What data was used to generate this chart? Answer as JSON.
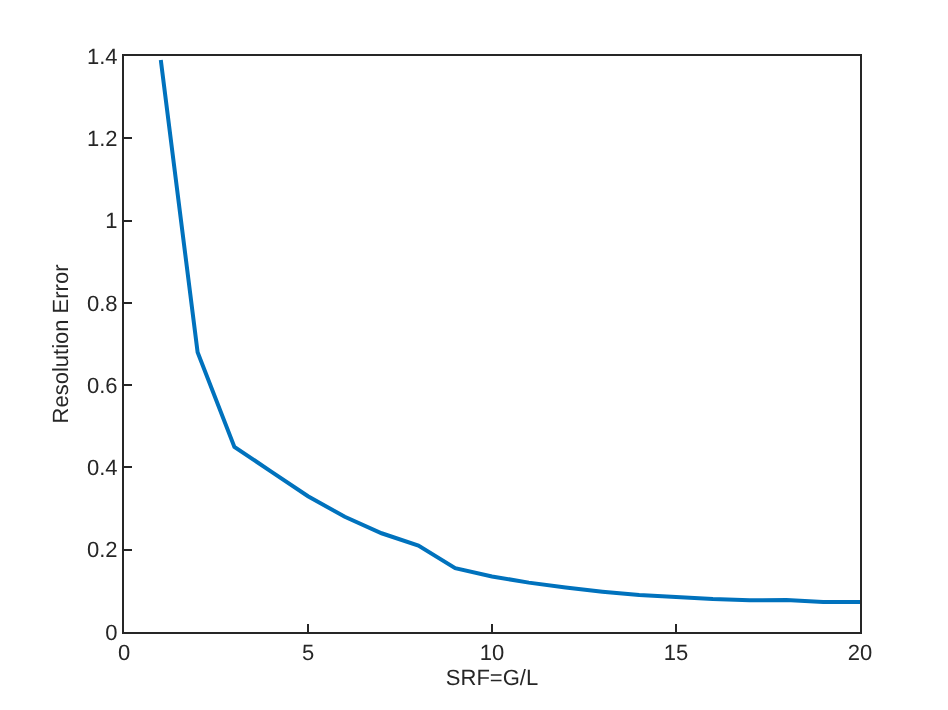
{
  "chart_data": {
    "type": "line",
    "xlabel": "SRF=G/L",
    "ylabel": "Resolution Error",
    "x": [
      1,
      2,
      3,
      4,
      5,
      6,
      7,
      8,
      9,
      10,
      11,
      12,
      13,
      14,
      15,
      16,
      17,
      18,
      19,
      20
    ],
    "series": [
      {
        "color": "#0072bd",
        "values": [
          1.39,
          0.68,
          0.45,
          0.39,
          0.33,
          0.28,
          0.24,
          0.21,
          0.155,
          0.135,
          0.12,
          0.108,
          0.098,
          0.09,
          0.085,
          0.08,
          0.077,
          0.078,
          0.073,
          0.073
        ]
      }
    ],
    "xlim": [
      0,
      20
    ],
    "xticks": [
      0,
      5,
      10,
      15,
      20
    ],
    "ylim": [
      0,
      1.4
    ],
    "yticks": [
      0,
      0.2,
      0.4,
      0.6,
      0.8,
      1,
      1.2,
      1.4
    ],
    "marker": "none",
    "line_style": "solid"
  }
}
